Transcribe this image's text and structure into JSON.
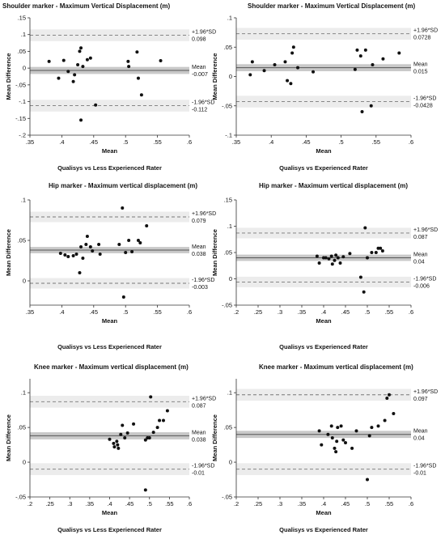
{
  "chart_data": [
    {
      "type": "scatter",
      "title": "Shoulder marker - Maximum Vertical Displacement (m)",
      "xlabel": "Mean",
      "ylabel": "Mean Difference",
      "subtitle": "Qualisys vs Less Experienced Rater",
      "xlim": [
        0.35,
        0.6
      ],
      "ylim": [
        -0.2,
        0.15
      ],
      "xticks": [
        0.35,
        0.4,
        0.45,
        0.5,
        0.55,
        0.6
      ],
      "yticks": [
        -0.2,
        -0.15,
        -0.1,
        -0.05,
        0,
        0.05,
        0.1,
        0.15
      ],
      "lines": [
        {
          "kind": "upper",
          "label": "+1.96*SD",
          "value_label": "0.098",
          "value": 0.098
        },
        {
          "kind": "mean",
          "label": "Mean",
          "value_label": "-0.007",
          "value": -0.007
        },
        {
          "kind": "lower",
          "label": "-1.96*SD",
          "value_label": "-0.112",
          "value": -0.112
        }
      ],
      "points": [
        {
          "x": 0.38,
          "y": 0.02
        },
        {
          "x": 0.395,
          "y": -0.03
        },
        {
          "x": 0.403,
          "y": 0.023
        },
        {
          "x": 0.41,
          "y": -0.01
        },
        {
          "x": 0.418,
          "y": -0.04
        },
        {
          "x": 0.42,
          "y": -0.02
        },
        {
          "x": 0.425,
          "y": 0.01
        },
        {
          "x": 0.428,
          "y": 0.05
        },
        {
          "x": 0.43,
          "y": 0.06
        },
        {
          "x": 0.433,
          "y": 0.005
        },
        {
          "x": 0.44,
          "y": 0.025
        },
        {
          "x": 0.445,
          "y": 0.03
        },
        {
          "x": 0.43,
          "y": -0.155
        },
        {
          "x": 0.453,
          "y": -0.11
        },
        {
          "x": 0.504,
          "y": 0.02
        },
        {
          "x": 0.505,
          "y": 0.005
        },
        {
          "x": 0.518,
          "y": 0.048
        },
        {
          "x": 0.52,
          "y": -0.03
        },
        {
          "x": 0.525,
          "y": -0.08
        },
        {
          "x": 0.555,
          "y": 0.022
        }
      ]
    },
    {
      "type": "scatter",
      "title": "Shoulder marker - Maximum Vertical Displacement (m)",
      "xlabel": "Mean",
      "ylabel": "Mean Difference",
      "subtitle": "Qualisys vs Experienced Rater",
      "xlim": [
        0.35,
        0.6
      ],
      "ylim": [
        -0.1,
        0.1
      ],
      "xticks": [
        0.35,
        0.4,
        0.45,
        0.5,
        0.55,
        0.6
      ],
      "yticks": [
        -0.1,
        -0.05,
        0,
        0.05,
        0.1
      ],
      "lines": [
        {
          "kind": "upper",
          "label": "+1.96*SD",
          "value_label": "0.0728",
          "value": 0.0728
        },
        {
          "kind": "mean",
          "label": "Mean",
          "value_label": "0.015",
          "value": 0.015
        },
        {
          "kind": "lower",
          "label": "-1.96*SD",
          "value_label": "-0.0428",
          "value": -0.0428
        }
      ],
      "points": [
        {
          "x": 0.37,
          "y": 0.003
        },
        {
          "x": 0.373,
          "y": 0.025
        },
        {
          "x": 0.39,
          "y": 0.01
        },
        {
          "x": 0.405,
          "y": 0.02
        },
        {
          "x": 0.42,
          "y": 0.025
        },
        {
          "x": 0.423,
          "y": -0.007
        },
        {
          "x": 0.428,
          "y": -0.012
        },
        {
          "x": 0.43,
          "y": 0.04
        },
        {
          "x": 0.432,
          "y": 0.05
        },
        {
          "x": 0.438,
          "y": 0.015
        },
        {
          "x": 0.46,
          "y": 0.008
        },
        {
          "x": 0.52,
          "y": 0.012
        },
        {
          "x": 0.523,
          "y": 0.045
        },
        {
          "x": 0.528,
          "y": 0.035
        },
        {
          "x": 0.53,
          "y": -0.06
        },
        {
          "x": 0.535,
          "y": 0.045
        },
        {
          "x": 0.543,
          "y": -0.05
        },
        {
          "x": 0.545,
          "y": 0.02
        },
        {
          "x": 0.56,
          "y": 0.03
        },
        {
          "x": 0.583,
          "y": 0.04
        }
      ]
    },
    {
      "type": "scatter",
      "title": "Hip marker - Maximum vertical displacement (m)",
      "xlabel": "Mean",
      "ylabel": "Mean Difference",
      "subtitle": "Qualisys vs Less Experienced Rater",
      "xlim": [
        0.35,
        0.6
      ],
      "ylim": [
        -0.03,
        0.1
      ],
      "xticks": [
        0.35,
        0.4,
        0.45,
        0.5,
        0.55,
        0.6
      ],
      "yticks": [
        0,
        0.05,
        0.1
      ],
      "lines": [
        {
          "kind": "upper",
          "label": "+1.96*SD",
          "value_label": "0.079",
          "value": 0.079
        },
        {
          "kind": "mean",
          "label": "Mean",
          "value_label": "0.038",
          "value": 0.038
        },
        {
          "kind": "lower",
          "label": "-1.96*SD",
          "value_label": "-0.003",
          "value": -0.003
        }
      ],
      "points": [
        {
          "x": 0.398,
          "y": 0.034
        },
        {
          "x": 0.405,
          "y": 0.032
        },
        {
          "x": 0.41,
          "y": 0.03
        },
        {
          "x": 0.418,
          "y": 0.031
        },
        {
          "x": 0.423,
          "y": 0.033
        },
        {
          "x": 0.428,
          "y": 0.01
        },
        {
          "x": 0.43,
          "y": 0.042
        },
        {
          "x": 0.433,
          "y": 0.028
        },
        {
          "x": 0.438,
          "y": 0.045
        },
        {
          "x": 0.44,
          "y": 0.055
        },
        {
          "x": 0.445,
          "y": 0.042
        },
        {
          "x": 0.448,
          "y": 0.037
        },
        {
          "x": 0.458,
          "y": 0.045
        },
        {
          "x": 0.46,
          "y": 0.033
        },
        {
          "x": 0.49,
          "y": 0.045
        },
        {
          "x": 0.495,
          "y": 0.09
        },
        {
          "x": 0.5,
          "y": 0.035
        },
        {
          "x": 0.505,
          "y": 0.05
        },
        {
          "x": 0.51,
          "y": 0.036
        },
        {
          "x": 0.52,
          "y": 0.05
        },
        {
          "x": 0.523,
          "y": 0.047
        },
        {
          "x": 0.533,
          "y": 0.068
        },
        {
          "x": 0.497,
          "y": -0.02
        }
      ]
    },
    {
      "type": "scatter",
      "title": "Hip marker - Maximum vertical displacement (m)",
      "xlabel": "Mean",
      "ylabel": "Mean Difference",
      "subtitle": "Qualisys vs Experienced Rater",
      "xlim": [
        0.2,
        0.6
      ],
      "ylim": [
        -0.05,
        0.15
      ],
      "xticks": [
        0.2,
        0.25,
        0.3,
        0.35,
        0.4,
        0.45,
        0.5,
        0.55,
        0.6
      ],
      "yticks": [
        -0.05,
        0,
        0.05,
        0.1,
        0.15
      ],
      "lines": [
        {
          "kind": "upper",
          "label": "+1.96*SD",
          "value_label": "0.087",
          "value": 0.087
        },
        {
          "kind": "mean",
          "label": "Mean",
          "value_label": "0.04",
          "value": 0.04
        },
        {
          "kind": "lower",
          "label": "-1.96*SD",
          "value_label": "-0.006",
          "value": -0.006
        }
      ],
      "points": [
        {
          "x": 0.385,
          "y": 0.043
        },
        {
          "x": 0.39,
          "y": 0.03
        },
        {
          "x": 0.4,
          "y": 0.04
        },
        {
          "x": 0.405,
          "y": 0.04
        },
        {
          "x": 0.412,
          "y": 0.038
        },
        {
          "x": 0.418,
          "y": 0.043
        },
        {
          "x": 0.42,
          "y": 0.028
        },
        {
          "x": 0.425,
          "y": 0.035
        },
        {
          "x": 0.428,
          "y": 0.045
        },
        {
          "x": 0.433,
          "y": 0.04
        },
        {
          "x": 0.438,
          "y": 0.03
        },
        {
          "x": 0.445,
          "y": 0.042
        },
        {
          "x": 0.46,
          "y": 0.048
        },
        {
          "x": 0.485,
          "y": 0.003
        },
        {
          "x": 0.495,
          "y": 0.097
        },
        {
          "x": 0.5,
          "y": 0.04
        },
        {
          "x": 0.51,
          "y": 0.05
        },
        {
          "x": 0.52,
          "y": 0.05
        },
        {
          "x": 0.525,
          "y": 0.058
        },
        {
          "x": 0.53,
          "y": 0.058
        },
        {
          "x": 0.535,
          "y": 0.053
        },
        {
          "x": 0.492,
          "y": -0.025
        }
      ]
    },
    {
      "type": "scatter",
      "title": "Knee marker - Maximum vertical displacement (m)",
      "xlabel": "Mean",
      "ylabel": "Mean Difference",
      "subtitle": "Qualisys vs Less Experienced Rater",
      "xlim": [
        0.2,
        0.6
      ],
      "ylim": [
        -0.05,
        0.12
      ],
      "xticks": [
        0.2,
        0.25,
        0.3,
        0.35,
        0.4,
        0.45,
        0.5,
        0.55,
        0.6
      ],
      "yticks": [
        -0.05,
        0,
        0.05,
        0.1
      ],
      "lines": [
        {
          "kind": "upper",
          "label": "+1.96*SD",
          "value_label": "0.087",
          "value": 0.087
        },
        {
          "kind": "mean",
          "label": "Mean",
          "value_label": "0.038",
          "value": 0.038
        },
        {
          "kind": "lower",
          "label": "-1.96*SD",
          "value_label": "-0.01",
          "value": -0.01
        }
      ],
      "points": [
        {
          "x": 0.4,
          "y": 0.033
        },
        {
          "x": 0.41,
          "y": 0.027
        },
        {
          "x": 0.412,
          "y": 0.022
        },
        {
          "x": 0.418,
          "y": 0.03
        },
        {
          "x": 0.42,
          "y": 0.025
        },
        {
          "x": 0.422,
          "y": 0.02
        },
        {
          "x": 0.428,
          "y": 0.04
        },
        {
          "x": 0.432,
          "y": 0.053
        },
        {
          "x": 0.438,
          "y": 0.035
        },
        {
          "x": 0.445,
          "y": 0.042
        },
        {
          "x": 0.46,
          "y": 0.055
        },
        {
          "x": 0.49,
          "y": 0.032
        },
        {
          "x": 0.495,
          "y": 0.035
        },
        {
          "x": 0.5,
          "y": 0.035
        },
        {
          "x": 0.503,
          "y": 0.094
        },
        {
          "x": 0.51,
          "y": 0.043
        },
        {
          "x": 0.52,
          "y": 0.05
        },
        {
          "x": 0.525,
          "y": 0.06
        },
        {
          "x": 0.535,
          "y": 0.06
        },
        {
          "x": 0.545,
          "y": 0.074
        },
        {
          "x": 0.49,
          "y": -0.04
        }
      ]
    },
    {
      "type": "scatter",
      "title": "Knee marker - Maximum vertical displacement (m)",
      "xlabel": "Mean",
      "ylabel": "Mean Difference",
      "subtitle": "Qualisys vs Experienced Rater",
      "xlim": [
        0.2,
        0.6
      ],
      "ylim": [
        -0.05,
        0.12
      ],
      "xticks": [
        0.2,
        0.25,
        0.3,
        0.35,
        0.4,
        0.45,
        0.5,
        0.55,
        0.6
      ],
      "yticks": [
        -0.05,
        0,
        0.05,
        0.1
      ],
      "lines": [
        {
          "kind": "upper",
          "label": "+1.96*SD",
          "value_label": "0.097",
          "value": 0.097
        },
        {
          "kind": "mean",
          "label": "Mean",
          "value_label": "0.04",
          "value": 0.04
        },
        {
          "kind": "lower",
          "label": "-1.96*SD",
          "value_label": "-0.01",
          "value": -0.01
        }
      ],
      "points": [
        {
          "x": 0.39,
          "y": 0.045
        },
        {
          "x": 0.395,
          "y": 0.025
        },
        {
          "x": 0.41,
          "y": 0.04
        },
        {
          "x": 0.418,
          "y": 0.052
        },
        {
          "x": 0.42,
          "y": 0.035
        },
        {
          "x": 0.425,
          "y": 0.02
        },
        {
          "x": 0.428,
          "y": 0.015
        },
        {
          "x": 0.43,
          "y": 0.03
        },
        {
          "x": 0.432,
          "y": 0.05
        },
        {
          "x": 0.44,
          "y": 0.052
        },
        {
          "x": 0.445,
          "y": 0.032
        },
        {
          "x": 0.45,
          "y": 0.028
        },
        {
          "x": 0.465,
          "y": 0.02
        },
        {
          "x": 0.475,
          "y": 0.045
        },
        {
          "x": 0.5,
          "y": -0.025
        },
        {
          "x": 0.505,
          "y": 0.038
        },
        {
          "x": 0.51,
          "y": 0.05
        },
        {
          "x": 0.525,
          "y": 0.052
        },
        {
          "x": 0.54,
          "y": 0.06
        },
        {
          "x": 0.545,
          "y": 0.092
        },
        {
          "x": 0.55,
          "y": 0.097
        },
        {
          "x": 0.56,
          "y": 0.07
        }
      ]
    }
  ]
}
